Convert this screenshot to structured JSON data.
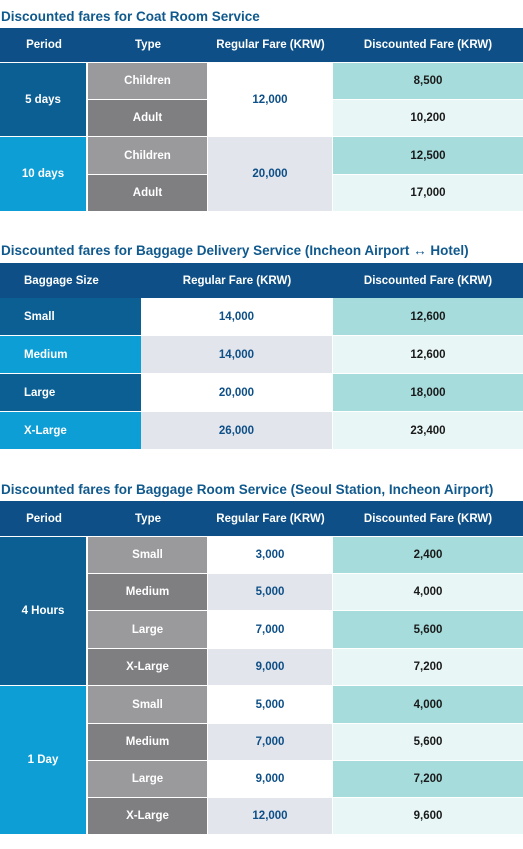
{
  "coat": {
    "title": "Discounted fares for Coat Room Service",
    "headers": {
      "period": "Period",
      "type": "Type",
      "regular": "Regular Fare (KRW)",
      "discounted": "Discounted Fare (KRW)"
    },
    "groups": [
      {
        "period": "5 days",
        "regular": "12,000",
        "rows": [
          {
            "type": "Children",
            "discounted": "8,500"
          },
          {
            "type": "Adult",
            "discounted": "10,200"
          }
        ]
      },
      {
        "period": "10 days",
        "regular": "20,000",
        "rows": [
          {
            "type": "Children",
            "discounted": "12,500"
          },
          {
            "type": "Adult",
            "discounted": "17,000"
          }
        ]
      }
    ]
  },
  "delivery": {
    "title": "Discounted fares for Baggage Delivery Service (Incheon Airport ↔ Hotel)",
    "headers": {
      "size": "Baggage Size",
      "regular": "Regular Fare (KRW)",
      "discounted": "Discounted Fare (KRW)"
    },
    "rows": [
      {
        "size": "Small",
        "regular": "14,000",
        "discounted": "12,600"
      },
      {
        "size": "Medium",
        "regular": "14,000",
        "discounted": "12,600"
      },
      {
        "size": "Large",
        "regular": "20,000",
        "discounted": "18,000"
      },
      {
        "size": "X-Large",
        "regular": "26,000",
        "discounted": "23,400"
      }
    ]
  },
  "room": {
    "title": "Discounted fares for Baggage Room Service (Seoul Station, Incheon Airport)",
    "headers": {
      "period": "Period",
      "type": "Type",
      "regular": "Regular Fare (KRW)",
      "discounted": "Discounted Fare (KRW)"
    },
    "groups": [
      {
        "period": "4 Hours",
        "rows": [
          {
            "type": "Small",
            "regular": "3,000",
            "discounted": "2,400"
          },
          {
            "type": "Medium",
            "regular": "5,000",
            "discounted": "4,000"
          },
          {
            "type": "Large",
            "regular": "7,000",
            "discounted": "5,600"
          },
          {
            "type": "X-Large",
            "regular": "9,000",
            "discounted": "7,200"
          }
        ]
      },
      {
        "period": "1 Day",
        "rows": [
          {
            "type": "Small",
            "regular": "5,000",
            "discounted": "4,000"
          },
          {
            "type": "Medium",
            "regular": "7,000",
            "discounted": "5,600"
          },
          {
            "type": "Large",
            "regular": "9,000",
            "discounted": "7,200"
          },
          {
            "type": "X-Large",
            "regular": "12,000",
            "discounted": "9,600"
          }
        ]
      }
    ]
  },
  "colors": {
    "header": "#0d4f86",
    "period_dark": "#0b5f93",
    "period_light": "#0c9ed5",
    "type_gray_light": "#9a9a9d",
    "type_gray_dark": "#7f7f82",
    "discount_teal": "#a6dcdc",
    "discount_pale": "#e9f6f6",
    "regular_gray": "#e3e5ec"
  }
}
